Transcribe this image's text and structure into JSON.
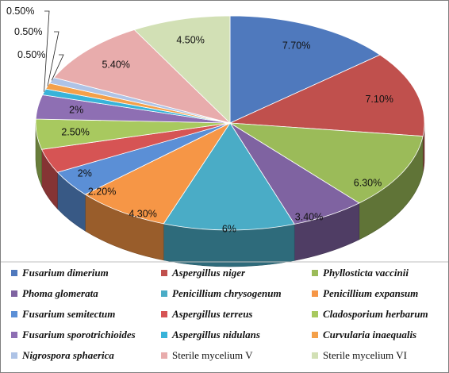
{
  "chart_data": {
    "type": "pie",
    "title": "",
    "three_d": true,
    "legend_position": "bottom",
    "slices": [
      {
        "name": "Fusarium dimerium",
        "value": 7.7,
        "label": "7.70%",
        "italic": true,
        "color": "#4f79bd"
      },
      {
        "name": "Aspergillus niger",
        "value": 7.1,
        "label": "7.10%",
        "italic": true,
        "color": "#c0504d"
      },
      {
        "name": "Phyllosticta vaccinii",
        "value": 6.3,
        "label": "6.30%",
        "italic": true,
        "color": "#9bbb59"
      },
      {
        "name": "Phoma glomerata",
        "value": 3.4,
        "label": "3.40%",
        "italic": true,
        "color": "#7f63a1"
      },
      {
        "name": "Penicillium chrysogenum",
        "value": 6,
        "label": "6%",
        "italic": true,
        "color": "#4aacc6"
      },
      {
        "name": "Penicillium expansum",
        "value": 4.3,
        "label": "4.30%",
        "italic": true,
        "color": "#f69646"
      },
      {
        "name": "Fusarium semitectum",
        "value": 2.2,
        "label": "2.20%",
        "italic": true,
        "color": "#5b8fd6"
      },
      {
        "name": "Aspergillus terreus",
        "value": 2,
        "label": "2%",
        "italic": true,
        "color": "#d65454"
      },
      {
        "name": "Cladosporium herbarum",
        "value": 2.5,
        "label": "2.50%",
        "italic": true,
        "color": "#a8c95f"
      },
      {
        "name": "Fusarium sporotrichioides",
        "value": 2,
        "label": "2%",
        "italic": true,
        "color": "#8e6fb3"
      },
      {
        "name": "Aspergillus nidulans",
        "value": 0.5,
        "label": "0.50%",
        "italic": true,
        "color": "#38b3d9"
      },
      {
        "name": "Curvularia inaequalis",
        "value": 0.5,
        "label": "0.50%",
        "italic": true,
        "color": "#f4a04a"
      },
      {
        "name": "Nigrospora sphaerica",
        "value": 0.5,
        "label": "0.50%",
        "italic": true,
        "color": "#aec3e6"
      },
      {
        "name": "Sterile mycelium V",
        "value": 5.4,
        "label": "5.40%",
        "italic": false,
        "color": "#e8acac"
      },
      {
        "name": "Sterile mycelium VI",
        "value": 4.5,
        "label": "4.50%",
        "italic": false,
        "color": "#d2e0b5"
      }
    ]
  }
}
